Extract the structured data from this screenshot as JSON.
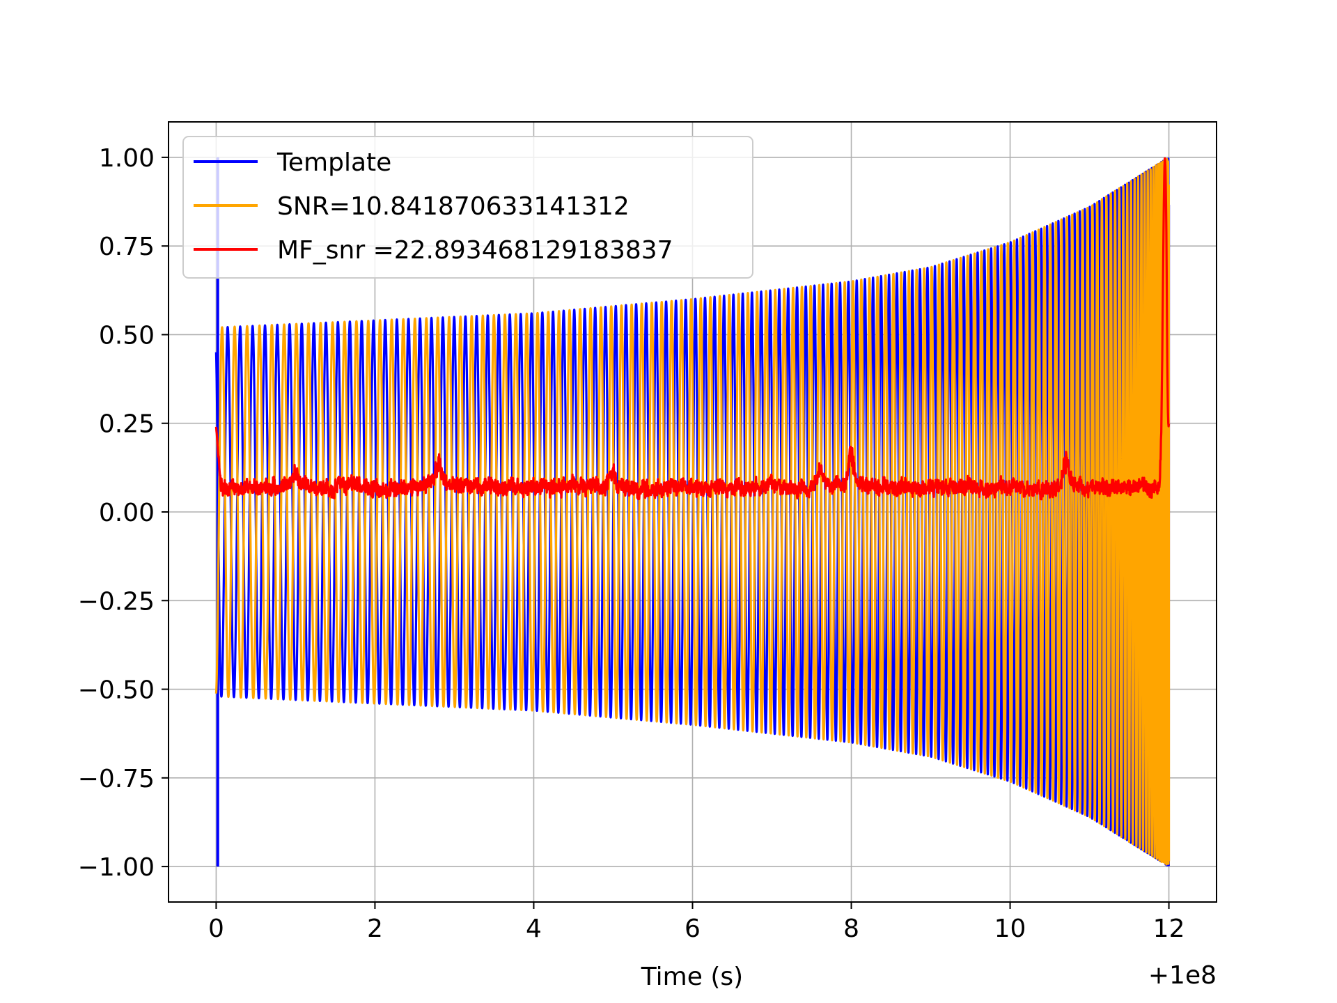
{
  "chart_data": {
    "type": "line",
    "title": "",
    "xlabel": "Time (s)",
    "ylabel": "",
    "x_offset_label": "+1e8",
    "xlim": [
      -0.6,
      12.6
    ],
    "ylim": [
      -1.1,
      1.1
    ],
    "grid": true,
    "legend_position": "upper-left",
    "x_ticks": [
      {
        "value": 0,
        "label": "0"
      },
      {
        "value": 2,
        "label": "2"
      },
      {
        "value": 4,
        "label": "4"
      },
      {
        "value": 6,
        "label": "6"
      },
      {
        "value": 8,
        "label": "8"
      },
      {
        "value": 10,
        "label": "10"
      },
      {
        "value": 12,
        "label": "12"
      }
    ],
    "y_ticks": [
      {
        "value": 1.0,
        "label": "1.00"
      },
      {
        "value": 0.75,
        "label": "0.75"
      },
      {
        "value": 0.5,
        "label": "0.50"
      },
      {
        "value": 0.25,
        "label": "0.25"
      },
      {
        "value": 0.0,
        "label": "0.00"
      },
      {
        "value": -0.25,
        "label": "−0.25"
      },
      {
        "value": -0.5,
        "label": "−0.50"
      },
      {
        "value": -0.75,
        "label": "−0.75"
      },
      {
        "value": -1.0,
        "label": "−1.00"
      }
    ],
    "series": [
      {
        "name": "Template",
        "color": "#0000ff",
        "kind": "chirp",
        "t_start": 0.0,
        "t_end": 12.0,
        "cycles": 122,
        "phase_deg": 30,
        "envelope": [
          [
            0.0,
            0.52
          ],
          [
            2.0,
            0.54
          ],
          [
            4.0,
            0.56
          ],
          [
            6.0,
            0.6
          ],
          [
            8.0,
            0.65
          ],
          [
            9.0,
            0.69
          ],
          [
            10.0,
            0.76
          ],
          [
            10.5,
            0.81
          ],
          [
            11.0,
            0.86
          ],
          [
            11.5,
            0.93
          ],
          [
            12.0,
            1.0
          ]
        ],
        "spike": {
          "x": 0.02,
          "y_min": -1.0,
          "y_max": 1.0
        }
      },
      {
        "name": "SNR=10.841870633141312",
        "color": "#ffa500",
        "kind": "chirp",
        "t_start": 0.0,
        "t_end": 12.0,
        "cycles": 122,
        "phase_deg": 190,
        "envelope": [
          [
            0.0,
            0.52
          ],
          [
            2.0,
            0.54
          ],
          [
            4.0,
            0.56
          ],
          [
            6.0,
            0.6
          ],
          [
            8.0,
            0.65
          ],
          [
            9.0,
            0.69
          ],
          [
            10.0,
            0.76
          ],
          [
            10.5,
            0.81
          ],
          [
            11.0,
            0.86
          ],
          [
            11.5,
            0.93
          ],
          [
            12.0,
            1.0
          ]
        ]
      },
      {
        "name": "MF_snr =22.893468129183837",
        "color": "#ff0000",
        "kind": "noise",
        "t_start": 0.0,
        "t_end": 12.0,
        "start_value": 0.24,
        "baseline": 0.07,
        "spread": 0.04,
        "bursts": [
          [
            1.0,
            0.13
          ],
          [
            2.8,
            0.15
          ],
          [
            5.0,
            0.13
          ],
          [
            7.6,
            0.14
          ],
          [
            8.0,
            0.18
          ],
          [
            10.7,
            0.15
          ]
        ],
        "peak": {
          "x": 11.95,
          "y": 1.0
        },
        "end_value": 0.24
      }
    ]
  }
}
